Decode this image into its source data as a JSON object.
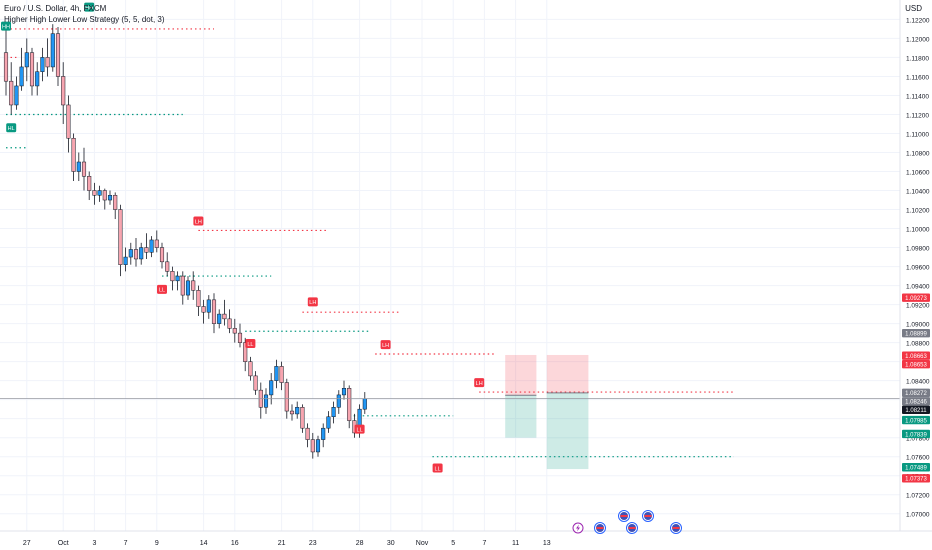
{
  "header": {
    "title": "Euro / U.S. Dollar, 4h, FXCM",
    "indicator": "Higher High Lower Low Strategy (5, 5, dot, 3)",
    "currency": "USD"
  },
  "colors": {
    "up": "#089981",
    "down": "#f23645",
    "bull_fill": "#2196f3",
    "bear_fill": "#f7a5b0",
    "level_red": "#f23645",
    "level_green": "#089981",
    "grid": "#f0f3fa"
  },
  "chart_data": {
    "type": "candlestick",
    "ylim": [
      1.0685,
      1.1232
    ],
    "y_ticks": [
      "1.12200",
      "1.12000",
      "1.11800",
      "1.11600",
      "1.11400",
      "1.11200",
      "1.11000",
      "1.10800",
      "1.10600",
      "1.10400",
      "1.10200",
      "1.10000",
      "1.09800",
      "1.09600",
      "1.09400",
      "1.09200",
      "1.09000",
      "1.08800",
      "1.08600",
      "1.08400",
      "1.08200",
      "1.08000",
      "1.07800",
      "1.07600",
      "1.07400",
      "1.07200",
      "1.07000"
    ],
    "x_ticks": [
      {
        "label": "27",
        "bar": 4
      },
      {
        "label": "Oct",
        "bar": 11
      },
      {
        "label": "3",
        "bar": 17
      },
      {
        "label": "7",
        "bar": 23
      },
      {
        "label": "9",
        "bar": 29
      },
      {
        "label": "14",
        "bar": 38
      },
      {
        "label": "16",
        "bar": 44
      },
      {
        "label": "21",
        "bar": 53
      },
      {
        "label": "23",
        "bar": 59
      },
      {
        "label": "28",
        "bar": 68
      },
      {
        "label": "30",
        "bar": 74
      },
      {
        "label": "Nov",
        "bar": 80
      },
      {
        "label": "5",
        "bar": 86
      },
      {
        "label": "7",
        "bar": 92
      },
      {
        "label": "11",
        "bar": 98
      },
      {
        "label": "13",
        "bar": 104
      }
    ],
    "price_labels": [
      {
        "value": "1.09273",
        "price": 1.09273,
        "color": "#f23645"
      },
      {
        "value": "1.08899",
        "price": 1.08899,
        "color": "#787b86"
      },
      {
        "value": "1.08663",
        "price": 1.08663,
        "color": "#f23645"
      },
      {
        "value": "1.08653",
        "price": 1.08653,
        "color": "#f23645"
      },
      {
        "value": "1.08272",
        "price": 1.08272,
        "color": "#787b86"
      },
      {
        "value": "1.08246",
        "price": 1.08246,
        "color": "#787b86"
      },
      {
        "value": "1.08211",
        "price": 1.08211,
        "color": "#131722"
      },
      {
        "value": "1.07985",
        "price": 1.07985,
        "color": "#089981"
      },
      {
        "value": "1.07839",
        "price": 1.07839,
        "color": "#089981"
      },
      {
        "value": "1.07489",
        "price": 1.07489,
        "color": "#089981"
      },
      {
        "value": "1.07373",
        "price": 1.07373,
        "color": "#f23645"
      }
    ],
    "candles": [
      [
        1.1185,
        1.1215,
        1.114,
        1.1155
      ],
      [
        1.1155,
        1.1175,
        1.112,
        1.113
      ],
      [
        1.113,
        1.116,
        1.1125,
        1.115
      ],
      [
        1.115,
        1.119,
        1.1145,
        1.117
      ],
      [
        1.117,
        1.12,
        1.1155,
        1.1185
      ],
      [
        1.1185,
        1.119,
        1.114,
        1.115
      ],
      [
        1.115,
        1.1175,
        1.114,
        1.1165
      ],
      [
        1.1165,
        1.119,
        1.1155,
        1.118
      ],
      [
        1.118,
        1.12,
        1.116,
        1.117
      ],
      [
        1.117,
        1.1215,
        1.1165,
        1.1205
      ],
      [
        1.1205,
        1.1212,
        1.115,
        1.116
      ],
      [
        1.116,
        1.1175,
        1.111,
        1.113
      ],
      [
        1.113,
        1.114,
        1.108,
        1.1095
      ],
      [
        1.1095,
        1.11,
        1.105,
        1.106
      ],
      [
        1.106,
        1.108,
        1.105,
        1.107
      ],
      [
        1.107,
        1.1085,
        1.104,
        1.1055
      ],
      [
        1.1055,
        1.106,
        1.103,
        1.104
      ],
      [
        1.104,
        1.1048,
        1.1025,
        1.1035
      ],
      [
        1.1035,
        1.1045,
        1.1028,
        1.104
      ],
      [
        1.104,
        1.1042,
        1.102,
        1.103
      ],
      [
        1.103,
        1.104,
        1.1025,
        1.1035
      ],
      [
        1.1035,
        1.1038,
        1.101,
        1.102
      ],
      [
        1.102,
        1.1025,
        1.095,
        1.0962
      ],
      [
        1.0962,
        1.098,
        1.0955,
        1.097
      ],
      [
        1.097,
        1.0985,
        1.0962,
        1.0978
      ],
      [
        1.0978,
        1.099,
        1.096,
        1.0968
      ],
      [
        1.0968,
        1.0985,
        1.0962,
        1.098
      ],
      [
        1.098,
        1.0995,
        1.0968,
        1.0975
      ],
      [
        1.0975,
        1.0992,
        1.097,
        1.0988
      ],
      [
        1.0988,
        1.0998,
        1.0975,
        1.098
      ],
      [
        1.098,
        1.0985,
        1.0958,
        1.0965
      ],
      [
        1.0965,
        1.0975,
        1.095,
        1.0955
      ],
      [
        1.0955,
        1.096,
        1.0935,
        1.0945
      ],
      [
        1.0945,
        1.0955,
        1.0935,
        1.095
      ],
      [
        1.095,
        1.0955,
        1.092,
        1.093
      ],
      [
        1.093,
        1.095,
        1.0925,
        1.0945
      ],
      [
        1.0945,
        1.0955,
        1.0925,
        1.0935
      ],
      [
        1.0935,
        1.094,
        1.0908,
        1.0918
      ],
      [
        1.0918,
        1.0925,
        1.09,
        1.0912
      ],
      [
        1.0912,
        1.093,
        1.0905,
        1.0925
      ],
      [
        1.0925,
        1.0932,
        1.089,
        1.09
      ],
      [
        1.09,
        1.0915,
        1.0895,
        1.091
      ],
      [
        1.091,
        1.0925,
        1.0898,
        1.0905
      ],
      [
        1.0905,
        1.0915,
        1.089,
        1.0895
      ],
      [
        1.0895,
        1.0905,
        1.088,
        1.089
      ],
      [
        1.089,
        1.09,
        1.0875,
        1.088
      ],
      [
        1.088,
        1.0885,
        1.085,
        1.086
      ],
      [
        1.086,
        1.0865,
        1.084,
        1.0845
      ],
      [
        1.0845,
        1.085,
        1.0825,
        1.083
      ],
      [
        1.083,
        1.0838,
        1.08,
        1.0812
      ],
      [
        1.0812,
        1.0832,
        1.0805,
        1.0825
      ],
      [
        1.0825,
        1.0848,
        1.0815,
        1.084
      ],
      [
        1.084,
        1.0862,
        1.0832,
        1.0855
      ],
      [
        1.0855,
        1.086,
        1.083,
        1.0838
      ],
      [
        1.0838,
        1.0842,
        1.08,
        1.0808
      ],
      [
        1.0808,
        1.0815,
        1.0798,
        1.0805
      ],
      [
        1.0805,
        1.0818,
        1.08,
        1.0812
      ],
      [
        1.0812,
        1.0815,
        1.0785,
        1.079
      ],
      [
        1.079,
        1.0795,
        1.077,
        1.0778
      ],
      [
        1.0778,
        1.0785,
        1.0758,
        1.0765
      ],
      [
        1.0765,
        1.0782,
        1.076,
        1.0778
      ],
      [
        1.0778,
        1.0795,
        1.077,
        1.079
      ],
      [
        1.079,
        1.0808,
        1.0785,
        1.0802
      ],
      [
        1.0802,
        1.0818,
        1.0795,
        1.0812
      ],
      [
        1.0812,
        1.083,
        1.0805,
        1.0825
      ],
      [
        1.0825,
        1.084,
        1.082,
        1.0832
      ],
      [
        1.0832,
        1.0835,
        1.079,
        1.0798
      ],
      [
        1.0798,
        1.0805,
        1.078,
        1.0785
      ],
      [
        1.0785,
        1.0815,
        1.078,
        1.081
      ],
      [
        1.081,
        1.0828,
        1.0805,
        1.0821
      ]
    ]
  },
  "levels": [
    {
      "type": "high",
      "price": 1.121,
      "from": 0,
      "to": 40
    },
    {
      "type": "high",
      "price": 1.118,
      "from": 0,
      "to": 2
    },
    {
      "type": "low",
      "price": 1.112,
      "from": 0,
      "to": 34
    },
    {
      "type": "low",
      "price": 1.1085,
      "from": 0,
      "to": 4
    },
    {
      "type": "high",
      "price": 1.0998,
      "from": 37,
      "to": 62
    },
    {
      "type": "low",
      "price": 1.095,
      "from": 30,
      "to": 51
    },
    {
      "type": "high",
      "price": 1.0912,
      "from": 57,
      "to": 76
    },
    {
      "type": "low",
      "price": 1.0892,
      "from": 46,
      "to": 70
    },
    {
      "type": "high",
      "price": 1.0868,
      "from": 71,
      "to": 94
    },
    {
      "type": "low",
      "price": 1.0803,
      "from": 66,
      "to": 86
    },
    {
      "type": "high",
      "price": 1.0828,
      "from": 91,
      "to": 140
    },
    {
      "type": "low",
      "price": 1.076,
      "from": 82,
      "to": 140
    }
  ],
  "markers": [
    {
      "label": "HH",
      "bar": 0,
      "price": 1.1205,
      "pos": "top"
    },
    {
      "label": "HH",
      "bar": 16,
      "price": 1.1225,
      "pos": "top"
    },
    {
      "label": "HL",
      "bar": 1,
      "price": 1.1115,
      "pos": "bottom"
    },
    {
      "label": "LH",
      "bar": 37,
      "price": 1.1,
      "pos": "top"
    },
    {
      "label": "LL",
      "bar": 30,
      "price": 1.0945,
      "pos": "bottom"
    },
    {
      "label": "LH",
      "bar": 59,
      "price": 1.0915,
      "pos": "top"
    },
    {
      "label": "LL",
      "bar": 47,
      "price": 1.0888,
      "pos": "bottom"
    },
    {
      "label": "LH",
      "bar": 73,
      "price": 1.087,
      "pos": "top"
    },
    {
      "label": "LL",
      "bar": 68,
      "price": 1.0798,
      "pos": "bottom"
    },
    {
      "label": "LH",
      "bar": 91,
      "price": 1.083,
      "pos": "top"
    },
    {
      "label": "LL",
      "bar": 83,
      "price": 1.0757,
      "pos": "bottom"
    }
  ],
  "positions": [
    {
      "from": 96,
      "to": 102,
      "entry": 1.08246,
      "target": 1.078,
      "stop": 1.0867
    },
    {
      "from": 104,
      "to": 112,
      "entry": 1.08272,
      "target": 1.0747,
      "stop": 1.0867
    }
  ],
  "current_price": 1.08211,
  "events": [
    {
      "icon": "lightning-icon"
    },
    {
      "icon": "flag-pair-icon"
    },
    {
      "icon": "flag-pair-icon"
    },
    {
      "icon": "flag-pair-icon"
    },
    {
      "icon": "flag-pair-icon"
    },
    {
      "icon": "flag-icon"
    }
  ]
}
